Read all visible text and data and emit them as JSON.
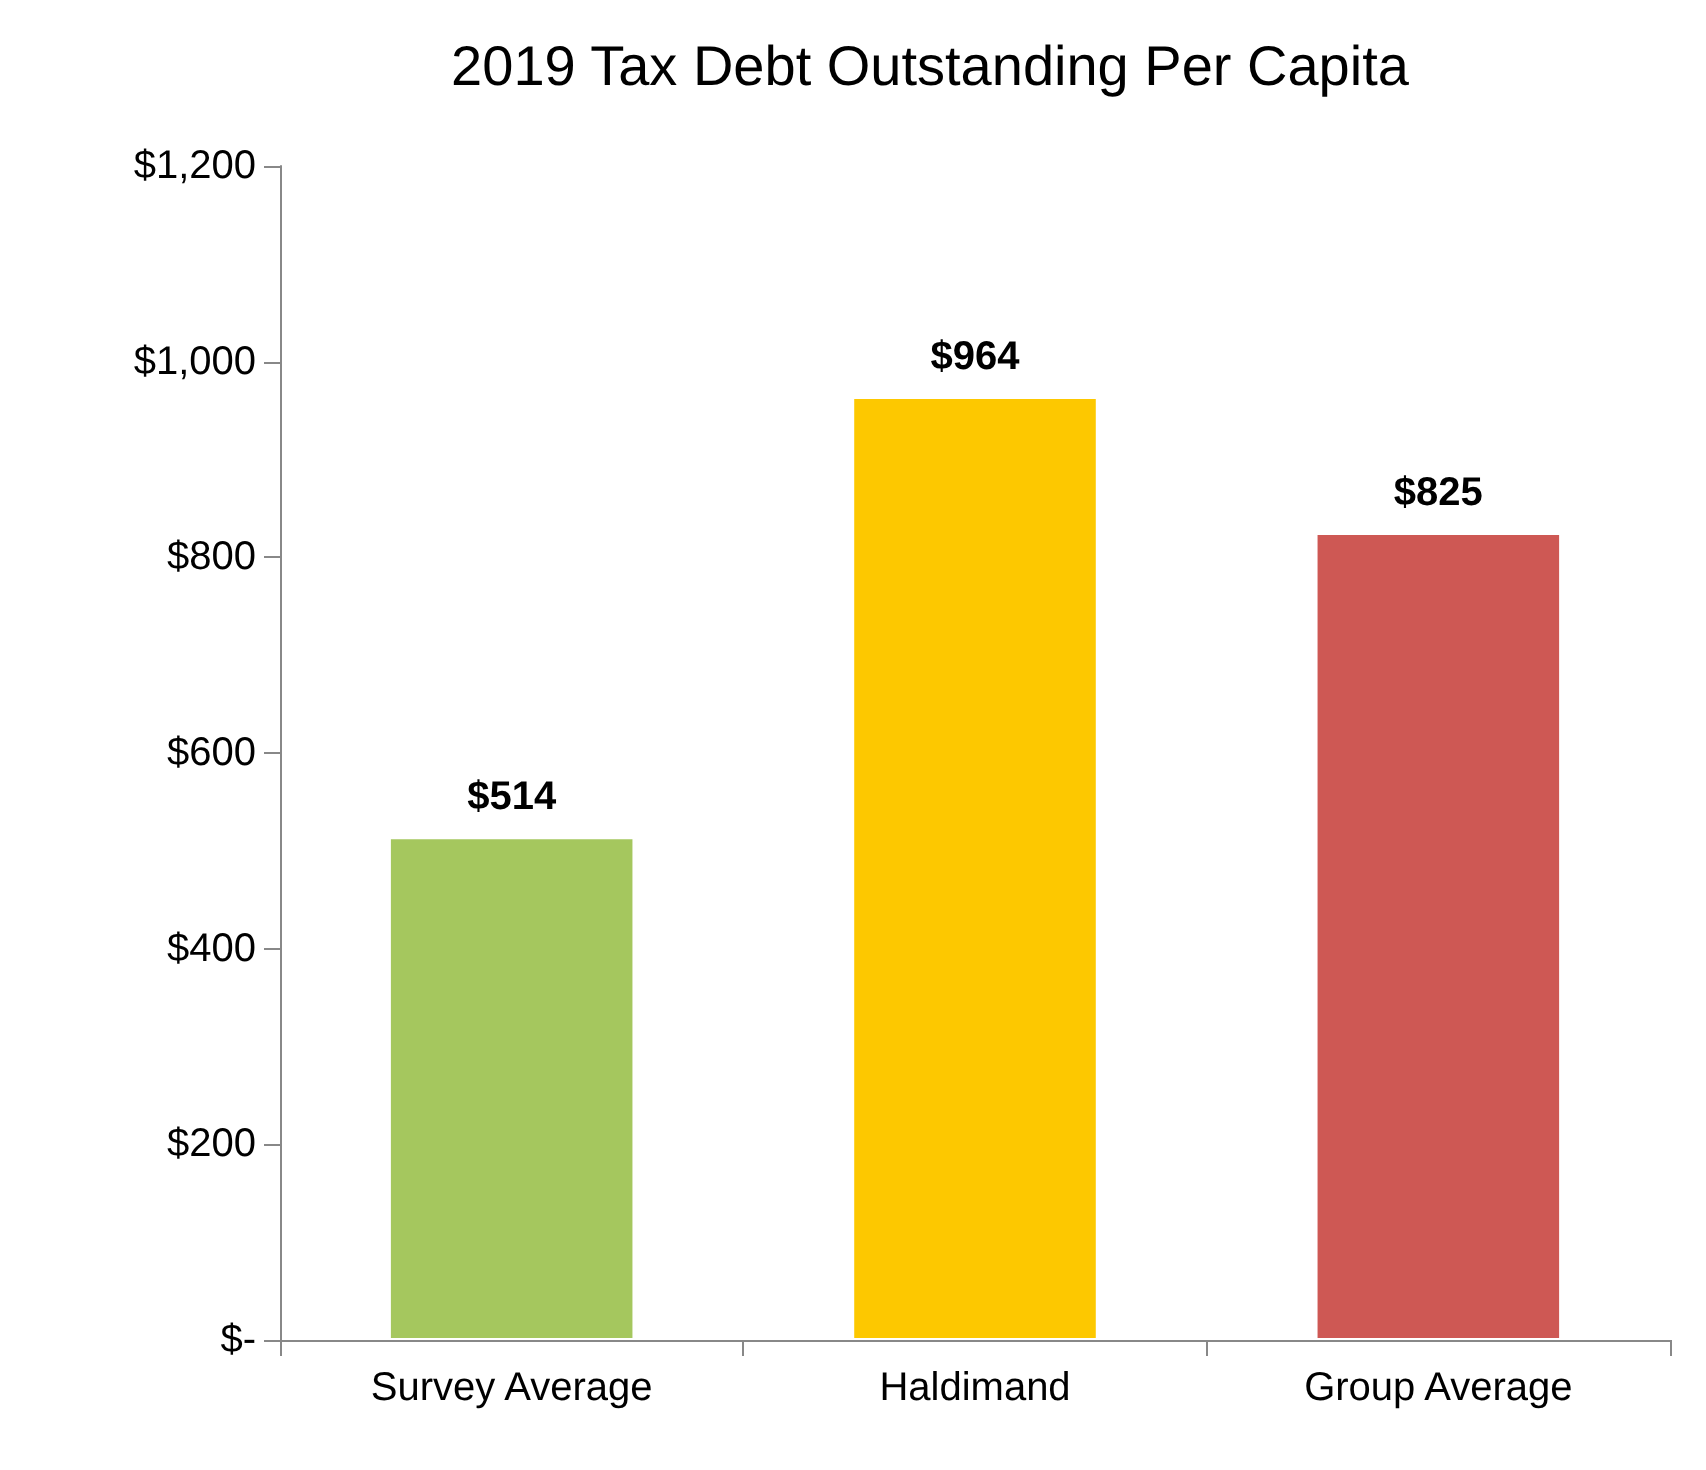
{
  "chart_data": {
    "type": "bar",
    "title": "2019 Tax Debt Outstanding Per Capita",
    "categories": [
      "Survey Average",
      "Haldimand",
      "Group Average"
    ],
    "values": [
      514,
      964,
      825
    ],
    "colors": [
      "#a5c75e",
      "#fdc800",
      "#ce5854"
    ],
    "value_labels": [
      "$514",
      "$964",
      "$825"
    ],
    "ylim": [
      0,
      1200
    ],
    "yticks": [
      {
        "value": 0,
        "label": "$-"
      },
      {
        "value": 200,
        "label": "$200"
      },
      {
        "value": 400,
        "label": "$400"
      },
      {
        "value": 600,
        "label": "$600"
      },
      {
        "value": 800,
        "label": "$800"
      },
      {
        "value": 1000,
        "label": "$1,000"
      },
      {
        "value": 1200,
        "label": "$1,200"
      }
    ],
    "grid": false
  }
}
